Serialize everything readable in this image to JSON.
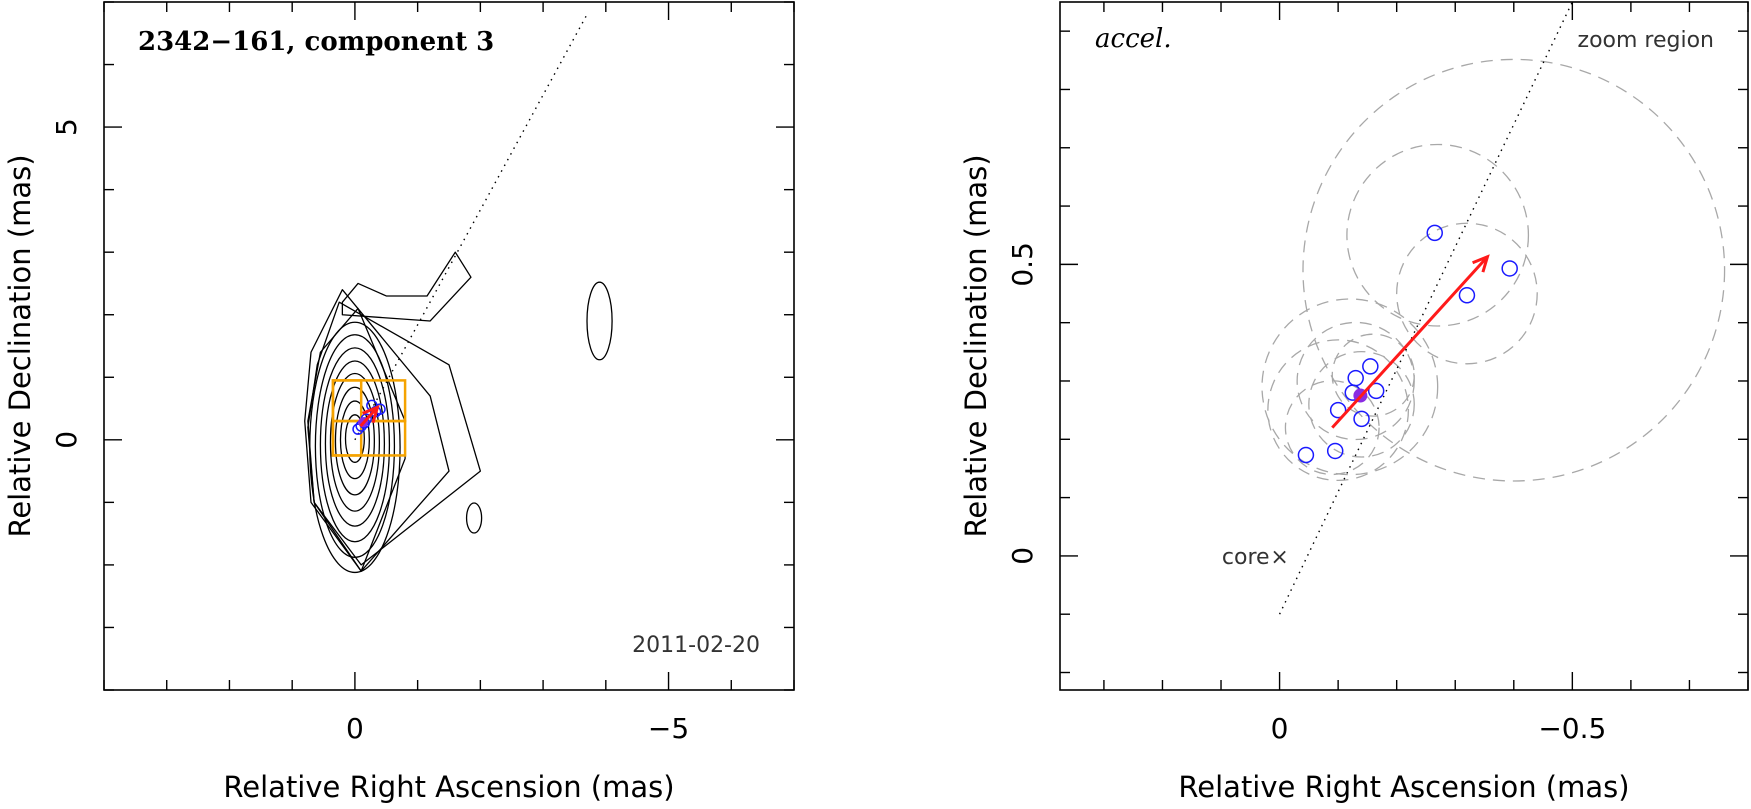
{
  "colors": {
    "epoch": "#1a1aff",
    "vector": "#ff1a1a",
    "box": "#f5a300",
    "error_circle": "#a8a8a8",
    "mean": "#8a2be2"
  },
  "chart_data": [
    {
      "type": "scatter",
      "title": "2342−161, component 3",
      "date_label": "2011-02-20",
      "xlabel": "Relative Right Ascension (mas)",
      "ylabel": "Relative Declination (mas)",
      "xlim": [
        4.0,
        -7.0
      ],
      "ylim": [
        -4.0,
        7.0
      ],
      "xticks": [
        {
          "value": 0,
          "label": "0"
        },
        {
          "value": -5,
          "label": "−5"
        }
      ],
      "yticks": [
        {
          "value": 0,
          "label": "0"
        },
        {
          "value": 5,
          "label": "5"
        }
      ],
      "jet_axis": {
        "x": [
          0.0,
          -3.7
        ],
        "y": [
          0.0,
          6.8
        ]
      },
      "mean_position": {
        "x": -0.13,
        "y": 0.28
      },
      "epochs": [
        {
          "x": -0.05,
          "y": 0.17
        },
        {
          "x": -0.1,
          "y": 0.22
        },
        {
          "x": -0.15,
          "y": 0.27
        },
        {
          "x": -0.18,
          "y": 0.33
        },
        {
          "x": -0.27,
          "y": 0.55
        },
        {
          "x": -0.33,
          "y": 0.45
        },
        {
          "x": -0.4,
          "y": 0.49
        }
      ],
      "vector": {
        "from": {
          "x": -0.09,
          "y": 0.22
        },
        "to": {
          "x": -0.36,
          "y": 0.52
        }
      },
      "zoom_boxes": [
        {
          "x0": 0.35,
          "x1": -0.8,
          "y0": -0.25,
          "y1": 0.3
        },
        {
          "x0": 0.35,
          "x1": -0.8,
          "y0": 0.3,
          "y1": 0.95
        },
        {
          "x0": 0.35,
          "x1": -0.1,
          "y0": -0.25,
          "y1": 0.95
        }
      ],
      "contours": [
        [
          [
            -0.05,
            2.1
          ],
          [
            -0.8,
            0.3
          ],
          [
            -0.8,
            -0.3
          ],
          [
            -0.1,
            -2.1
          ],
          [
            0.65,
            -1.0
          ],
          [
            0.75,
            0.3
          ],
          [
            0.55,
            1.4
          ]
        ],
        [
          [
            0.2,
            2.4
          ],
          [
            -1.2,
            0.7
          ],
          [
            -1.5,
            -0.5
          ],
          [
            -0.1,
            -2.1
          ],
          [
            0.7,
            -1.0
          ],
          [
            0.8,
            0.3
          ],
          [
            0.7,
            1.4
          ]
        ],
        [
          [
            0.25,
            2.2
          ],
          [
            -1.5,
            1.2
          ],
          [
            -2.0,
            -0.5
          ],
          [
            -0.1,
            -2.0
          ],
          [
            0.65,
            -1.0
          ],
          [
            0.75,
            0.2
          ],
          [
            0.6,
            1.2
          ]
        ],
        [
          [
            0.2,
            2.0
          ],
          [
            -1.2,
            1.9
          ],
          [
            -1.85,
            2.6
          ],
          [
            -1.6,
            3.0
          ],
          [
            -1.15,
            2.3
          ],
          [
            -0.5,
            2.3
          ],
          [
            -0.05,
            2.5
          ],
          [
            0.2,
            2.2
          ]
        ]
      ],
      "ellipse_levels": [
        {
          "x": 0.0,
          "y": -0.12,
          "rx": 0.72,
          "ry": 2.0
        },
        {
          "x": 0.0,
          "y": -0.1,
          "rx": 0.63,
          "ry": 1.78
        },
        {
          "x": 0.0,
          "y": -0.08,
          "rx": 0.55,
          "ry": 1.55
        },
        {
          "x": 0.0,
          "y": -0.06,
          "rx": 0.47,
          "ry": 1.32
        },
        {
          "x": 0.0,
          "y": -0.04,
          "rx": 0.39,
          "ry": 1.1
        },
        {
          "x": 0.0,
          "y": -0.02,
          "rx": 0.31,
          "ry": 0.86
        },
        {
          "x": 0.0,
          "y": 0.0,
          "rx": 0.23,
          "ry": 0.62
        },
        {
          "x": 0.0,
          "y": 0.02,
          "rx": 0.15,
          "ry": 0.38
        }
      ],
      "islands": [
        {
          "x": -3.9,
          "y": 1.9,
          "rx": 0.2,
          "ry": 0.62
        },
        {
          "x": -1.9,
          "y": -1.25,
          "rx": 0.12,
          "ry": 0.24
        }
      ]
    },
    {
      "type": "scatter",
      "label": "accel.",
      "region_label": "zoom region",
      "core_label": "core",
      "core_marker": "×",
      "xlabel": "Relative Right Ascension (mas)",
      "ylabel": "Relative Declination (mas)",
      "xlim": [
        0.375,
        -0.8
      ],
      "ylim": [
        -0.23,
        0.95
      ],
      "xticks": [
        {
          "value": 0,
          "label": "0"
        },
        {
          "value": -0.5,
          "label": "−0.5"
        }
      ],
      "yticks": [
        {
          "value": 0,
          "label": "0"
        },
        {
          "value": 0.5,
          "label": "0.5"
        }
      ],
      "jet_axis": {
        "x": [
          0.0,
          -0.5
        ],
        "y": [
          -0.1,
          0.95
        ]
      },
      "mean_position": {
        "x": -0.138,
        "y": 0.275
      },
      "epochs": [
        {
          "x": -0.045,
          "y": 0.173
        },
        {
          "x": -0.095,
          "y": 0.18
        },
        {
          "x": -0.1,
          "y": 0.25
        },
        {
          "x": -0.125,
          "y": 0.28
        },
        {
          "x": -0.13,
          "y": 0.305
        },
        {
          "x": -0.14,
          "y": 0.235
        },
        {
          "x": -0.155,
          "y": 0.325
        },
        {
          "x": -0.165,
          "y": 0.283
        },
        {
          "x": -0.265,
          "y": 0.554
        },
        {
          "x": -0.32,
          "y": 0.447
        },
        {
          "x": -0.393,
          "y": 0.493
        }
      ],
      "vector": {
        "from": {
          "x": -0.09,
          "y": 0.22
        },
        "to": {
          "x": -0.355,
          "y": 0.513
        }
      },
      "error_circles": [
        {
          "x": -0.4,
          "y": 0.49,
          "r": 0.36
        },
        {
          "x": -0.27,
          "y": 0.55,
          "r": 0.155
        },
        {
          "x": -0.32,
          "y": 0.45,
          "r": 0.12
        },
        {
          "x": -0.12,
          "y": 0.29,
          "r": 0.15
        },
        {
          "x": -0.1,
          "y": 0.25,
          "r": 0.12
        },
        {
          "x": -0.14,
          "y": 0.26,
          "r": 0.09
        },
        {
          "x": -0.13,
          "y": 0.3,
          "r": 0.1
        },
        {
          "x": -0.16,
          "y": 0.31,
          "r": 0.07
        },
        {
          "x": -0.09,
          "y": 0.22,
          "r": 0.08
        }
      ]
    }
  ]
}
